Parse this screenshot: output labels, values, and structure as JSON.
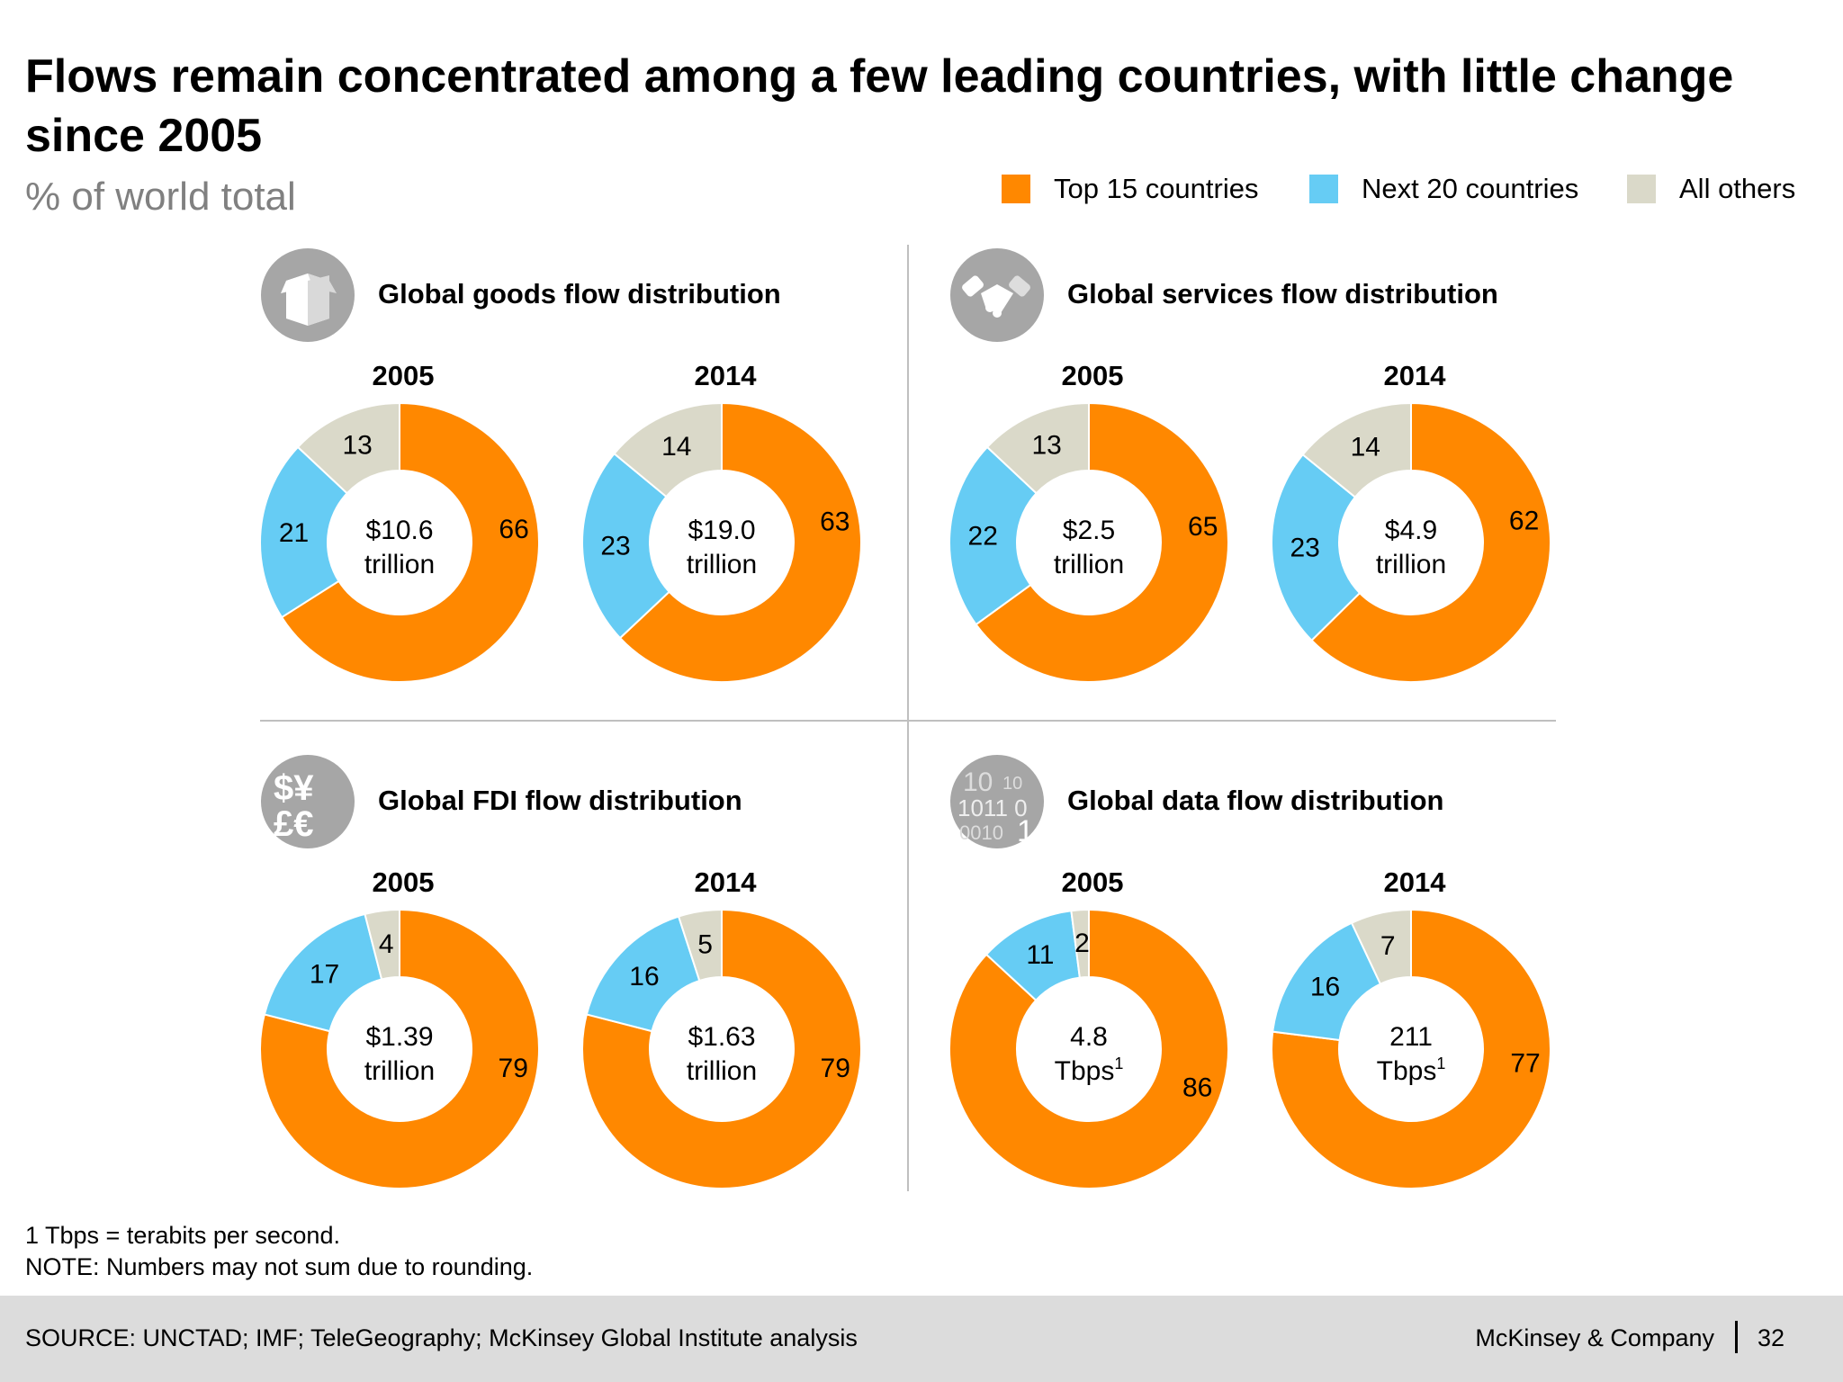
{
  "title": "Flows remain concentrated among a few leading countries, with little change since 2005",
  "subtitle": "% of world total",
  "legend": [
    {
      "label": "Top 15 countries",
      "color": "#FF8800"
    },
    {
      "label": "Next 20 countries",
      "color": "#66CCF4"
    },
    {
      "label": "All others",
      "color": "#DAD9C9"
    }
  ],
  "footnotes": [
    "1 Tbps = terabits per second.",
    "NOTE: Numbers may not sum due to rounding."
  ],
  "footer": {
    "source": "SOURCE: UNCTAD; IMF; TeleGeography; McKinsey Global Institute analysis",
    "brand": "McKinsey & Company",
    "page": "32"
  },
  "chart_data": [
    {
      "type": "pie",
      "title": "Global goods flow distribution",
      "icon": "box-icon",
      "series_names": [
        "Top 15 countries",
        "Next 20 countries",
        "All others"
      ],
      "charts": [
        {
          "year": "2005",
          "values": [
            66,
            21,
            13
          ],
          "center": [
            "$10.6",
            "trillion"
          ]
        },
        {
          "year": "2014",
          "values": [
            63,
            23,
            14
          ],
          "center": [
            "$19.0",
            "trillion"
          ]
        }
      ]
    },
    {
      "type": "pie",
      "title": "Global services flow distribution",
      "icon": "handshake-icon",
      "series_names": [
        "Top 15 countries",
        "Next 20 countries",
        "All others"
      ],
      "charts": [
        {
          "year": "2005",
          "values": [
            65,
            22,
            13
          ],
          "center": [
            "$2.5",
            "trillion"
          ]
        },
        {
          "year": "2014",
          "values": [
            62,
            23,
            14
          ],
          "center": [
            "$4.9",
            "trillion"
          ]
        }
      ]
    },
    {
      "type": "pie",
      "title": "Global FDI flow distribution",
      "icon": "currency-icon",
      "series_names": [
        "Top 15 countries",
        "Next 20 countries",
        "All others"
      ],
      "charts": [
        {
          "year": "2005",
          "values": [
            79,
            17,
            4
          ],
          "center": [
            "$1.39",
            "trillion"
          ]
        },
        {
          "year": "2014",
          "values": [
            79,
            16,
            5
          ],
          "center": [
            "$1.63",
            "trillion"
          ]
        }
      ]
    },
    {
      "type": "pie",
      "title": "Global data flow distribution",
      "icon": "binary-data-icon",
      "series_names": [
        "Top 15 countries",
        "Next 20 countries",
        "All others"
      ],
      "charts": [
        {
          "year": "2005",
          "values": [
            86,
            11,
            2
          ],
          "center": [
            "4.8",
            "Tbps",
            "1"
          ]
        },
        {
          "year": "2014",
          "values": [
            77,
            16,
            7
          ],
          "center": [
            "211",
            "Tbps",
            "1"
          ]
        }
      ]
    }
  ]
}
